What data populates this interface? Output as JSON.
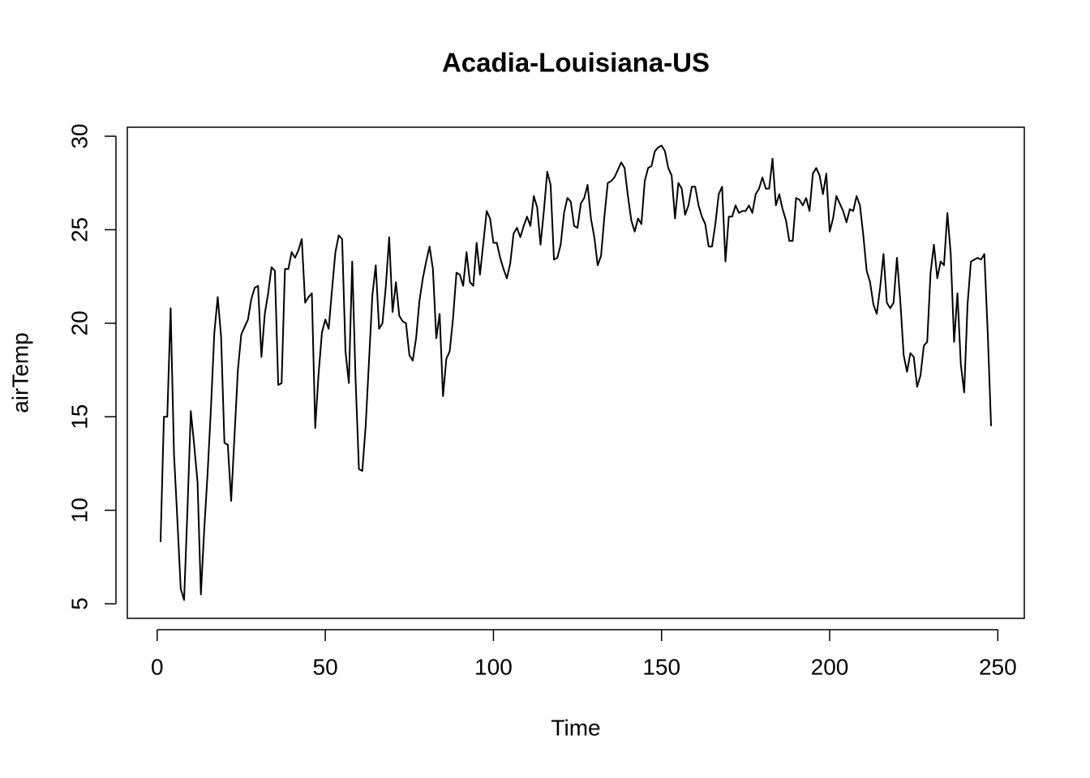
{
  "chart_data": {
    "type": "line",
    "title": "Acadia-Louisiana-US",
    "xlabel": "Time",
    "ylabel": "airTemp",
    "x": [
      1,
      2,
      3,
      4,
      5,
      6,
      7,
      8,
      9,
      10,
      11,
      12,
      13,
      14,
      15,
      16,
      17,
      18,
      19,
      20,
      21,
      22,
      23,
      24,
      25,
      26,
      27,
      28,
      29,
      30,
      31,
      32,
      33,
      34,
      35,
      36,
      37,
      38,
      39,
      40,
      41,
      42,
      43,
      44,
      45,
      46,
      47,
      48,
      49,
      50,
      51,
      52,
      53,
      54,
      55,
      56,
      57,
      58,
      59,
      60,
      61,
      62,
      63,
      64,
      65,
      66,
      67,
      68,
      69,
      70,
      71,
      72,
      73,
      74,
      75,
      76,
      77,
      78,
      79,
      80,
      81,
      82,
      83,
      84,
      85,
      86,
      87,
      88,
      89,
      90,
      91,
      92,
      93,
      94,
      95,
      96,
      97,
      98,
      99,
      100,
      101,
      102,
      103,
      104,
      105,
      106,
      107,
      108,
      109,
      110,
      111,
      112,
      113,
      114,
      115,
      116,
      117,
      118,
      119,
      120,
      121,
      122,
      123,
      124,
      125,
      126,
      127,
      128,
      129,
      130,
      131,
      132,
      133,
      134,
      135,
      136,
      137,
      138,
      139,
      140,
      141,
      142,
      143,
      144,
      145,
      146,
      147,
      148,
      149,
      150,
      151,
      152,
      153,
      154,
      155,
      156,
      157,
      158,
      159,
      160,
      161,
      162,
      163,
      164,
      165,
      166,
      167,
      168,
      169,
      170,
      171,
      172,
      173,
      174,
      175,
      176,
      177,
      178,
      179,
      180,
      181,
      182,
      183,
      184,
      185,
      186,
      187,
      188,
      189,
      190,
      191,
      192,
      193,
      194,
      195,
      196,
      197,
      198,
      199,
      200,
      201,
      202,
      203,
      204,
      205,
      206,
      207,
      208,
      209,
      210,
      211,
      212,
      213,
      214,
      215,
      216,
      217,
      218,
      219,
      220,
      221,
      222,
      223,
      224,
      225,
      226,
      227,
      228,
      229,
      230,
      231,
      232,
      233,
      234,
      235,
      236,
      237,
      238,
      239,
      240,
      241,
      242,
      243,
      244,
      245,
      246,
      247,
      248
    ],
    "values": [
      8.3,
      15.0,
      15.0,
      20.8,
      13,
      9.5,
      5.8,
      5.2,
      10,
      15.3,
      13.5,
      11.5,
      5.5,
      9,
      12,
      15.5,
      19.5,
      21.4,
      19.3,
      13.6,
      13.5,
      10.5,
      14,
      17.5,
      19.4,
      19.8,
      20.2,
      21.3,
      21.9,
      22.0,
      18.2,
      20.5,
      21.6,
      23.0,
      22.8,
      16.7,
      16.8,
      22.9,
      22.9,
      23.8,
      23.5,
      23.9,
      24.5,
      21.1,
      21.4,
      21.6,
      14.4,
      17.3,
      19.5,
      20.2,
      19.7,
      21.8,
      23.8,
      24.7,
      24.5,
      18.5,
      16.8,
      23.3,
      17,
      12.2,
      12.1,
      14.5,
      18,
      21.5,
      23.1,
      19.7,
      20.0,
      22.0,
      24.6,
      20.6,
      22.2,
      20.4,
      20.1,
      20.0,
      18.3,
      18.0,
      19.2,
      21.2,
      22.4,
      23.3,
      24.1,
      22.9,
      19.2,
      20.5,
      16.1,
      18.1,
      18.5,
      20.3,
      22.7,
      22.6,
      22.0,
      23.8,
      22.2,
      22.0,
      24.3,
      22.6,
      24.3,
      26.0,
      25.6,
      24.3,
      24.3,
      23.5,
      22.9,
      22.4,
      23.2,
      24.8,
      25.1,
      24.6,
      25.2,
      25.7,
      25.2,
      26.8,
      26.2,
      24.2,
      26.0,
      28.1,
      27.4,
      23.4,
      23.5,
      24.2,
      25.9,
      26.7,
      26.5,
      25.2,
      25.1,
      26.4,
      26.7,
      27.4,
      25.6,
      24.6,
      23.1,
      23.6,
      25.7,
      27.5,
      27.6,
      27.8,
      28.2,
      28.6,
      28.3,
      26.8,
      25.5,
      24.9,
      25.6,
      25.3,
      27.6,
      28.3,
      28.4,
      29.2,
      29.4,
      29.5,
      29.2,
      28.3,
      27.9,
      25.6,
      27.5,
      27.2,
      25.8,
      26.3,
      27.3,
      27.3,
      26.3,
      25.7,
      25.3,
      24.1,
      24.1,
      25.3,
      26.9,
      27.3,
      23.3,
      25.7,
      25.7,
      26.3,
      25.9,
      26.0,
      26.0,
      26.3,
      25.9,
      26.9,
      27.2,
      27.8,
      27.2,
      27.2,
      28.8,
      26.3,
      26.9,
      26.1,
      25.5,
      24.4,
      24.4,
      26.7,
      26.6,
      26.3,
      26.7,
      26.0,
      28.0,
      28.3,
      27.9,
      26.9,
      28.0,
      24.9,
      25.6,
      26.8,
      26.4,
      26.0,
      25.4,
      26.1,
      26.0,
      26.8,
      26.3,
      24.7,
      22.8,
      22.2,
      21.0,
      20.5,
      21.9,
      23.7,
      21.1,
      20.8,
      21.1,
      23.5,
      21.2,
      18.3,
      17.4,
      18.4,
      18.2,
      16.6,
      17.2,
      18.8,
      19.0,
      22.7,
      24.2,
      22.4,
      23.3,
      23.1,
      25.9,
      23.7,
      19.0,
      21.6,
      17.8,
      16.3,
      21.0,
      23.3,
      23.4,
      23.5,
      23.4,
      23.7,
      19.5,
      14.5
    ],
    "color": "#000000",
    "xlim": [
      -8.88,
      257.88
    ],
    "xticks": [
      0,
      50,
      100,
      150,
      200,
      250
    ],
    "ylim": [
      4.22,
      30.48
    ],
    "yticks": [
      5,
      10,
      15,
      20,
      25,
      30
    ]
  }
}
